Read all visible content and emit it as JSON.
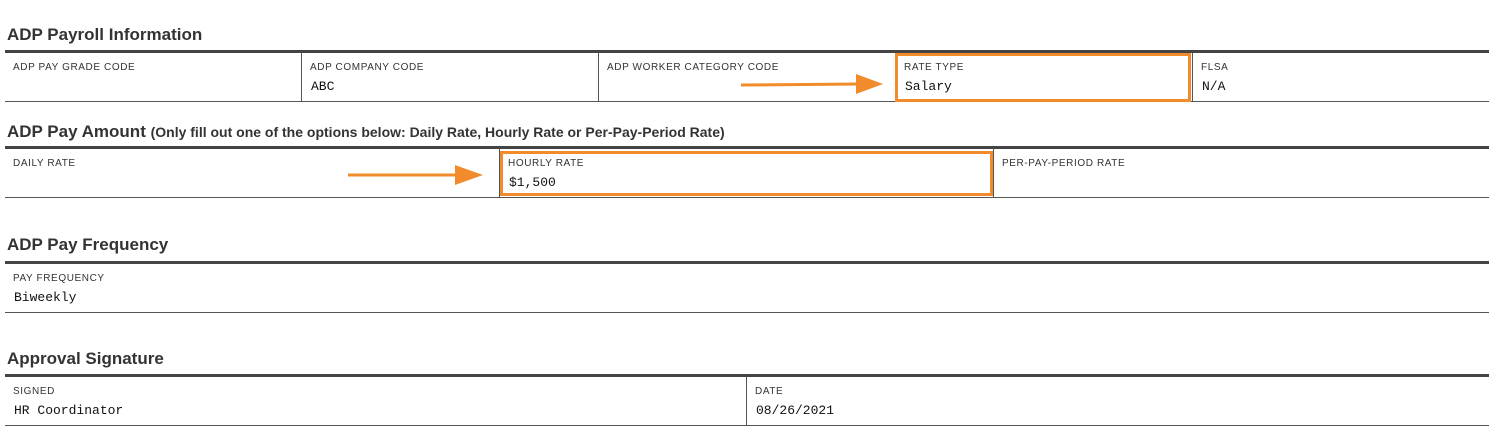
{
  "sections": {
    "payroll": {
      "title": "ADP Payroll Information",
      "fields": {
        "pay_grade": {
          "label": "ADP PAY GRADE CODE",
          "value": ""
        },
        "company_code": {
          "label": "ADP COMPANY CODE",
          "value": "ABC"
        },
        "worker_category": {
          "label": "ADP WORKER CATEGORY CODE",
          "value": ""
        },
        "rate_type": {
          "label": "RATE TYPE",
          "value": "Salary"
        },
        "flsa": {
          "label": "FLSA",
          "value": "N/A"
        }
      }
    },
    "pay_amount": {
      "title": "ADP Pay Amount",
      "subtitle": "(Only fill out one of the options below: Daily Rate, Hourly Rate or Per-Pay-Period Rate)",
      "fields": {
        "daily_rate": {
          "label": "DAILY RATE",
          "value": ""
        },
        "hourly_rate": {
          "label": "HOURLY RATE",
          "value": "$1,500"
        },
        "per_pay_period_rate": {
          "label": "PER-PAY-PERIOD RATE",
          "value": ""
        }
      }
    },
    "pay_frequency": {
      "title": "ADP Pay Frequency",
      "fields": {
        "pay_frequency": {
          "label": "PAY FREQUENCY",
          "value": "Biweekly"
        }
      }
    },
    "approval": {
      "title": "Approval Signature",
      "fields": {
        "signed": {
          "label": "SIGNED",
          "value": "HR Coordinator"
        },
        "date": {
          "label": "DATE",
          "value": "08/26/2021"
        }
      }
    }
  },
  "annotations": {
    "highlight_color": "#f28b2b",
    "icons": [
      "arrow-right-icon",
      "arrow-right-icon"
    ]
  }
}
